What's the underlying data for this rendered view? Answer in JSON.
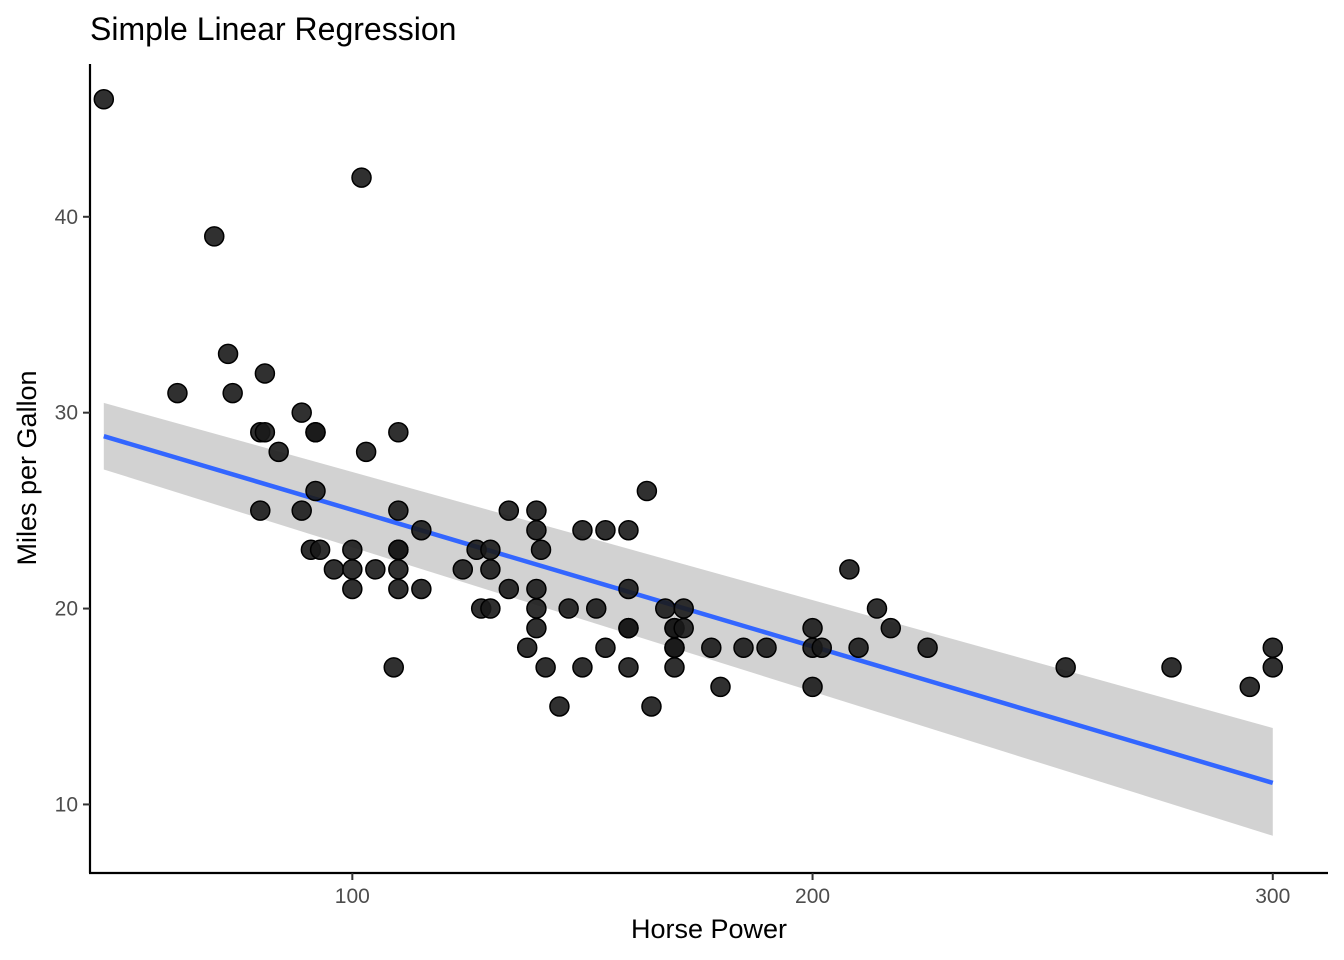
{
  "chart_data": {
    "type": "scatter",
    "title": "Simple Linear Regression",
    "xlabel": "Horse Power",
    "ylabel": "Miles per Gallon",
    "xlim": [
      43,
      312
    ],
    "ylim": [
      6.5,
      47.8
    ],
    "xticks": [
      100,
      200,
      300
    ],
    "yticks": [
      10,
      20,
      30,
      40
    ],
    "grid": false,
    "legend": "none",
    "colors": {
      "points": "#1a1a1a",
      "line": "#3366ff",
      "band": "#d0d0d0",
      "axis": "#000000",
      "tick_label": "#4d4d4d"
    },
    "points": [
      [
        46,
        46
      ],
      [
        102,
        42
      ],
      [
        70,
        39
      ],
      [
        73,
        33
      ],
      [
        81,
        32
      ],
      [
        62,
        31
      ],
      [
        74,
        31
      ],
      [
        89,
        30
      ],
      [
        80,
        29
      ],
      [
        81,
        29
      ],
      [
        92,
        29
      ],
      [
        92,
        29
      ],
      [
        110,
        29
      ],
      [
        84,
        28
      ],
      [
        103,
        28
      ],
      [
        92,
        26
      ],
      [
        164,
        26
      ],
      [
        80,
        25
      ],
      [
        89,
        25
      ],
      [
        110,
        25
      ],
      [
        134,
        25
      ],
      [
        140,
        25
      ],
      [
        115,
        24
      ],
      [
        140,
        24
      ],
      [
        150,
        24
      ],
      [
        155,
        24
      ],
      [
        160,
        24
      ],
      [
        91,
        23
      ],
      [
        93,
        23
      ],
      [
        100,
        23
      ],
      [
        110,
        23
      ],
      [
        110,
        23
      ],
      [
        127,
        23
      ],
      [
        130,
        23
      ],
      [
        141,
        23
      ],
      [
        96,
        22
      ],
      [
        100,
        22
      ],
      [
        105,
        22
      ],
      [
        110,
        22
      ],
      [
        124,
        22
      ],
      [
        130,
        22
      ],
      [
        208,
        22
      ],
      [
        100,
        21
      ],
      [
        110,
        21
      ],
      [
        115,
        21
      ],
      [
        134,
        21
      ],
      [
        140,
        21
      ],
      [
        160,
        21
      ],
      [
        128,
        20
      ],
      [
        130,
        20
      ],
      [
        140,
        20
      ],
      [
        147,
        20
      ],
      [
        153,
        20
      ],
      [
        168,
        20
      ],
      [
        172,
        20
      ],
      [
        214,
        20
      ],
      [
        140,
        19
      ],
      [
        160,
        19
      ],
      [
        160,
        19
      ],
      [
        170,
        19
      ],
      [
        170,
        19
      ],
      [
        172,
        19
      ],
      [
        200,
        19
      ],
      [
        217,
        19
      ],
      [
        138,
        18
      ],
      [
        155,
        18
      ],
      [
        170,
        18
      ],
      [
        170,
        18
      ],
      [
        178,
        18
      ],
      [
        185,
        18
      ],
      [
        190,
        18
      ],
      [
        200,
        18
      ],
      [
        202,
        18
      ],
      [
        210,
        18
      ],
      [
        225,
        18
      ],
      [
        300,
        18
      ],
      [
        109,
        17
      ],
      [
        142,
        17
      ],
      [
        150,
        17
      ],
      [
        160,
        17
      ],
      [
        170,
        17
      ],
      [
        255,
        17
      ],
      [
        278,
        17
      ],
      [
        300,
        17
      ],
      [
        180,
        16
      ],
      [
        200,
        16
      ],
      [
        295,
        16
      ],
      [
        145,
        15
      ],
      [
        165,
        15
      ]
    ],
    "regression": {
      "method": "lm",
      "x": [
        46,
        300
      ],
      "fit": [
        28.8,
        11.1
      ],
      "ci_lower": [
        27.1,
        8.4
      ],
      "ci_upper": [
        30.5,
        13.9
      ]
    }
  }
}
